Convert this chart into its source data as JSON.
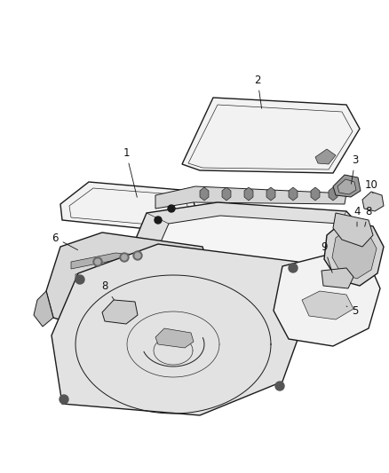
{
  "background_color": "#ffffff",
  "figsize": [
    4.38,
    5.33
  ],
  "dpi": 100,
  "line_color": "#1a1a1a",
  "label_fontsize": 8.5,
  "gray_light": "#e8e8e8",
  "gray_med": "#cccccc",
  "gray_dark": "#999999",
  "white_part": "#f2f2f2",
  "lw_thick": 1.0,
  "lw_med": 0.7,
  "lw_thin": 0.45
}
